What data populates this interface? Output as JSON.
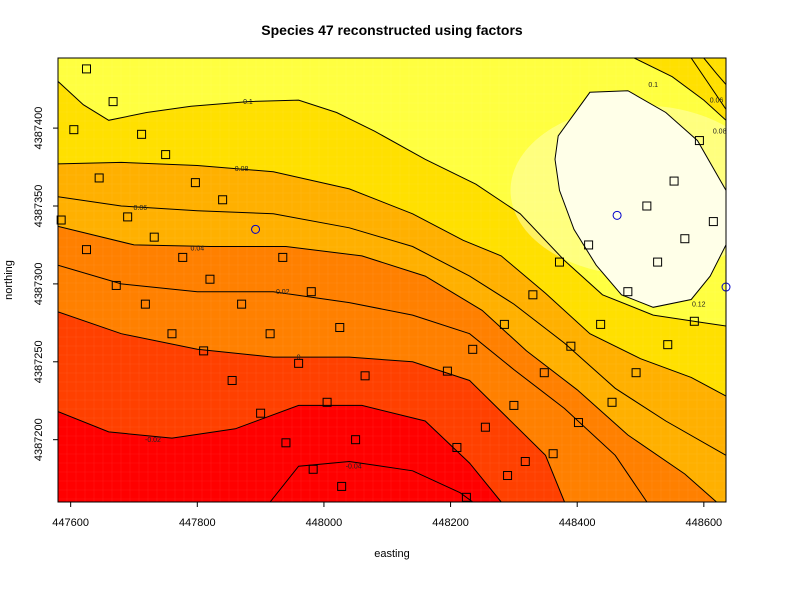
{
  "chart_data": {
    "type": "heatmap",
    "title": "Species 47 reconstructed using factors",
    "xlabel": "easting",
    "ylabel": "northing",
    "xlim": [
      447580,
      448635
    ],
    "ylim": [
      4387160,
      4387445
    ],
    "x_ticks": [
      447600,
      447800,
      448000,
      448200,
      448400,
      448600
    ],
    "y_ticks": [
      4387200,
      4387250,
      4387300,
      4387350,
      4387400
    ],
    "grid": false,
    "contour_levels": [
      -0.04,
      -0.02,
      0,
      0.02,
      0.04,
      0.06,
      0.08,
      0.1,
      0.12,
      0.1,
      0.08,
      0.06
    ],
    "color_scale": [
      "#ff0000",
      "#ff4000",
      "#ff8000",
      "#ffb000",
      "#ffe000",
      "#ffff40",
      "#ffffb0",
      "#ffffe8"
    ],
    "contours": [
      {
        "level": "-0.04",
        "points": [
          [
            447915,
            4387160
          ],
          [
            447960,
            4387183
          ],
          [
            448040,
            4387186
          ],
          [
            448140,
            4387180
          ],
          [
            448215,
            4387166
          ],
          [
            448235,
            4387160
          ]
        ]
      },
      {
        "level": "-0.02",
        "points": [
          [
            447580,
            4387218
          ],
          [
            447660,
            4387205
          ],
          [
            447760,
            4387201
          ],
          [
            447860,
            4387207
          ],
          [
            447960,
            4387222
          ],
          [
            448060,
            4387222
          ],
          [
            448160,
            4387212
          ],
          [
            448230,
            4387185
          ],
          [
            448280,
            4387160
          ]
        ]
      },
      {
        "level": "0",
        "points": [
          [
            447580,
            4387282
          ],
          [
            447680,
            4387268
          ],
          [
            447800,
            4387258
          ],
          [
            447920,
            4387253
          ],
          [
            448040,
            4387253
          ],
          [
            448140,
            4387250
          ],
          [
            448230,
            4387238
          ],
          [
            448290,
            4387214
          ],
          [
            448350,
            4387190
          ],
          [
            448380,
            4387160
          ]
        ]
      },
      {
        "level": "0.02",
        "points": [
          [
            447580,
            4387312
          ],
          [
            447680,
            4387300
          ],
          [
            447800,
            4387295
          ],
          [
            447920,
            4387295
          ],
          [
            448040,
            4387288
          ],
          [
            448140,
            4387280
          ],
          [
            448230,
            4387268
          ],
          [
            448300,
            4387245
          ],
          [
            448380,
            4387220
          ],
          [
            448460,
            4387190
          ],
          [
            448510,
            4387160
          ]
        ]
      },
      {
        "level": "0.04",
        "points": [
          [
            447580,
            4387337
          ],
          [
            447700,
            4387325
          ],
          [
            447820,
            4387324
          ],
          [
            447940,
            4387324
          ],
          [
            448060,
            4387318
          ],
          [
            448160,
            4387305
          ],
          [
            448250,
            4387283
          ],
          [
            448320,
            4387257
          ],
          [
            448400,
            4387232
          ],
          [
            448480,
            4387203
          ],
          [
            448570,
            4387178
          ],
          [
            448620,
            4387160
          ]
        ]
      },
      {
        "level": "0.06",
        "points": [
          [
            447580,
            4387356
          ],
          [
            447680,
            4387350
          ],
          [
            447800,
            4387347
          ],
          [
            447920,
            4387345
          ],
          [
            448040,
            4387336
          ],
          [
            448140,
            4387324
          ],
          [
            448230,
            4387305
          ],
          [
            448300,
            4387287
          ],
          [
            448380,
            4387262
          ],
          [
            448460,
            4387233
          ],
          [
            448540,
            4387212
          ],
          [
            448635,
            4387190
          ]
        ]
      },
      {
        "level": "0.08",
        "points": [
          [
            447580,
            4387377
          ],
          [
            447680,
            4387378
          ],
          [
            447800,
            4387376
          ],
          [
            447920,
            4387372
          ],
          [
            448040,
            4387361
          ],
          [
            448140,
            4387345
          ],
          [
            448220,
            4387328
          ],
          [
            448280,
            4387318
          ],
          [
            448350,
            4387294
          ],
          [
            448420,
            4387268
          ],
          [
            448500,
            4387252
          ],
          [
            448580,
            4387240
          ],
          [
            448635,
            4387228
          ]
        ]
      },
      {
        "level": "0.1",
        "points": [
          [
            447580,
            4387430
          ],
          [
            447620,
            4387415
          ],
          [
            447660,
            4387405
          ],
          [
            447720,
            4387410
          ],
          [
            447790,
            4387414
          ],
          [
            447880,
            4387417
          ],
          [
            447960,
            4387418
          ],
          [
            448020,
            4387410
          ],
          [
            448080,
            4387398
          ],
          [
            448160,
            4387380
          ],
          [
            448240,
            4387364
          ],
          [
            448310,
            4387345
          ],
          [
            448380,
            4387315
          ],
          [
            448440,
            4387293
          ],
          [
            448520,
            4387280
          ],
          [
            448600,
            4387275
          ],
          [
            448635,
            4387273
          ]
        ]
      },
      {
        "level": "0.12",
        "closed": true,
        "points": [
          [
            448370,
            4387395
          ],
          [
            448420,
            4387423
          ],
          [
            448480,
            4387424
          ],
          [
            448540,
            4387410
          ],
          [
            448590,
            4387392
          ],
          [
            448635,
            4387360
          ],
          [
            448635,
            4387325
          ],
          [
            448610,
            4387305
          ],
          [
            448580,
            4387290
          ],
          [
            448520,
            4387285
          ],
          [
            448470,
            4387293
          ],
          [
            448430,
            4387312
          ],
          [
            448395,
            4387335
          ],
          [
            448372,
            4387360
          ],
          [
            448365,
            4387380
          ]
        ]
      },
      {
        "level": "0.1",
        "points": [
          [
            448490,
            4387445
          ],
          [
            448550,
            4387433
          ],
          [
            448600,
            4387418
          ],
          [
            448635,
            4387405
          ]
        ]
      },
      {
        "level": "0.08",
        "points": [
          [
            448580,
            4387445
          ],
          [
            448610,
            4387427
          ],
          [
            448635,
            4387412
          ]
        ]
      },
      {
        "level": "0.06",
        "points": [
          [
            448600,
            4387445
          ],
          [
            448620,
            4387435
          ],
          [
            448635,
            4387428
          ]
        ]
      }
    ],
    "contour_label_positions": [
      {
        "text": "-0.04",
        "x": 448047,
        "y": 4387183
      },
      {
        "text": "-0.02",
        "x": 447730,
        "y": 4387200
      },
      {
        "text": "0",
        "x": 447960,
        "y": 4387253
      },
      {
        "text": "0.02",
        "x": 447935,
        "y": 4387295
      },
      {
        "text": "0.04",
        "x": 447800,
        "y": 4387323
      },
      {
        "text": "0.06",
        "x": 447710,
        "y": 4387349
      },
      {
        "text": "0.08",
        "x": 447870,
        "y": 4387374
      },
      {
        "text": "0.1",
        "x": 447880,
        "y": 4387417
      },
      {
        "text": "0.12",
        "x": 448592,
        "y": 4387287
      },
      {
        "text": "0.1",
        "x": 448520,
        "y": 4387428
      },
      {
        "text": "0.08",
        "x": 448625,
        "y": 4387398
      },
      {
        "text": "0.06",
        "x": 448620,
        "y": 4387418
      }
    ],
    "series": [
      {
        "marker": "square",
        "color": "#000000",
        "points": [
          [
            447625,
            4387438
          ],
          [
            447667,
            4387417
          ],
          [
            447605,
            4387399
          ],
          [
            447712,
            4387396
          ],
          [
            447750,
            4387383
          ],
          [
            447645,
            4387368
          ],
          [
            447797,
            4387365
          ],
          [
            447690,
            4387343
          ],
          [
            447840,
            4387354
          ],
          [
            447585,
            4387341
          ],
          [
            447732,
            4387330
          ],
          [
            447625,
            4387322
          ],
          [
            447777,
            4387317
          ],
          [
            447935,
            4387317
          ],
          [
            447820,
            4387303
          ],
          [
            447672,
            4387299
          ],
          [
            447718,
            4387287
          ],
          [
            447870,
            4387287
          ],
          [
            447980,
            4387295
          ],
          [
            447760,
            4387268
          ],
          [
            447915,
            4387268
          ],
          [
            447810,
            4387257
          ],
          [
            448025,
            4387272
          ],
          [
            447960,
            4387249
          ],
          [
            447855,
            4387238
          ],
          [
            448065,
            4387241
          ],
          [
            447900,
            4387217
          ],
          [
            448005,
            4387224
          ],
          [
            447940,
            4387198
          ],
          [
            448050,
            4387200
          ],
          [
            447983,
            4387181
          ],
          [
            448028,
            4387170
          ],
          [
            448195,
            4387244
          ],
          [
            448210,
            4387195
          ],
          [
            448235,
            4387258
          ],
          [
            448255,
            4387208
          ],
          [
            448225,
            4387163
          ],
          [
            448290,
            4387177
          ],
          [
            448300,
            4387222
          ],
          [
            448318,
            4387186
          ],
          [
            448285,
            4387274
          ],
          [
            448330,
            4387293
          ],
          [
            448348,
            4387243
          ],
          [
            448362,
            4387191
          ],
          [
            448372,
            4387314
          ],
          [
            448390,
            4387260
          ],
          [
            448402,
            4387211
          ],
          [
            448418,
            4387325
          ],
          [
            448437,
            4387274
          ],
          [
            448455,
            4387224
          ],
          [
            448480,
            4387295
          ],
          [
            448493,
            4387243
          ],
          [
            448510,
            4387350
          ],
          [
            448527,
            4387314
          ],
          [
            448543,
            4387261
          ],
          [
            448553,
            4387366
          ],
          [
            448570,
            4387329
          ],
          [
            448585,
            4387276
          ],
          [
            448593,
            4387392
          ],
          [
            448615,
            4387340
          ]
        ]
      },
      {
        "marker": "circle",
        "color": "#0000cc",
        "points": [
          [
            447892,
            4387335
          ],
          [
            448463,
            4387344
          ],
          [
            448635,
            4387298
          ]
        ]
      }
    ]
  }
}
